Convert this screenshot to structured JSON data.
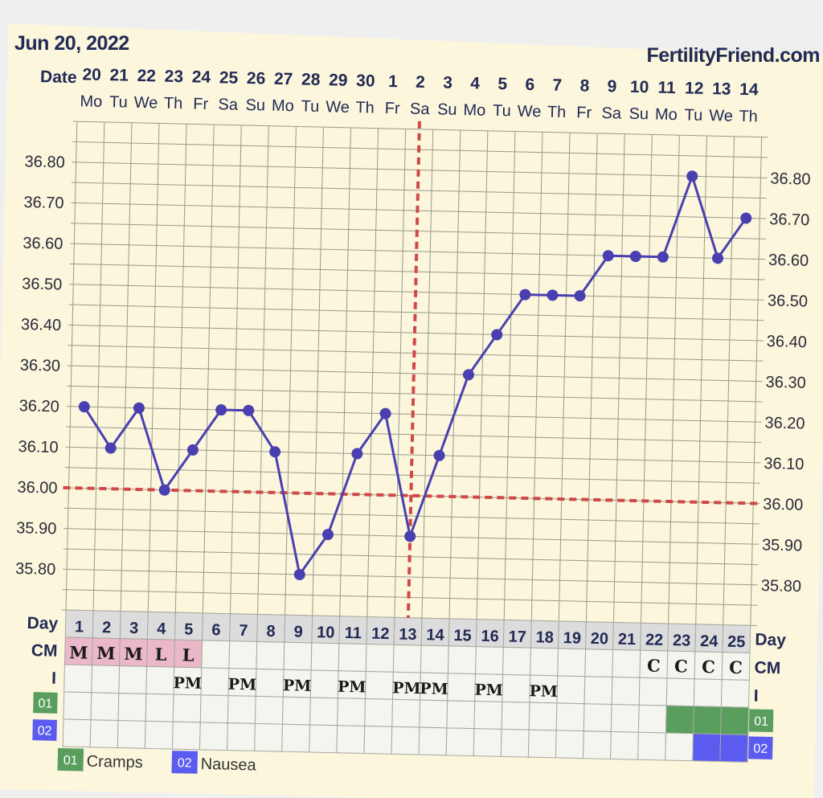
{
  "header": {
    "date_title": "Jun 20, 2022",
    "brand": "FertilityFriend.com"
  },
  "labels": {
    "date_row": "Date",
    "day_row": "Day",
    "cm_row": "CM",
    "i_row": "I",
    "code_01": "01",
    "code_02": "02"
  },
  "legend": [
    {
      "code": "01",
      "label": "Cramps",
      "color": "#5a9e5e"
    },
    {
      "code": "02",
      "label": "Nausea",
      "color": "#5b5bf0"
    }
  ],
  "colors": {
    "paper": "#fbf6dc",
    "grid": "#9a9a8a",
    "series": "#4a3fb0",
    "coverline": "#d04848",
    "menses_cell": "#eab8c8",
    "day_cell": "#dcdcdc",
    "data_cell": "#f5f5f0"
  },
  "chart_data": {
    "type": "line",
    "title": "",
    "xlabel": "Date",
    "ylabel": "",
    "x": [
      "20",
      "21",
      "22",
      "23",
      "24",
      "25",
      "26",
      "27",
      "28",
      "29",
      "30",
      "1",
      "2",
      "3",
      "4",
      "5",
      "6",
      "7",
      "8",
      "9",
      "10",
      "11",
      "12",
      "13",
      "14"
    ],
    "weekdays": [
      "Mo",
      "Tu",
      "We",
      "Th",
      "Fr",
      "Sa",
      "Su",
      "Mo",
      "Tu",
      "We",
      "Th",
      "Fr",
      "Sa",
      "Su",
      "Mo",
      "Tu",
      "We",
      "Th",
      "Fr",
      "Sa",
      "Su",
      "Mo",
      "Tu",
      "We",
      "Th"
    ],
    "cycle_days": [
      "1",
      "2",
      "3",
      "4",
      "5",
      "6",
      "7",
      "8",
      "9",
      "10",
      "11",
      "12",
      "13",
      "14",
      "15",
      "16",
      "17",
      "18",
      "19",
      "20",
      "21",
      "22",
      "23",
      "24",
      "25"
    ],
    "series": [
      {
        "values": [
          36.2,
          36.1,
          36.2,
          36.0,
          36.1,
          36.2,
          36.2,
          36.1,
          35.8,
          35.9,
          36.1,
          36.2,
          35.9,
          36.1,
          36.3,
          36.4,
          36.5,
          36.5,
          36.5,
          36.6,
          36.6,
          36.6,
          36.8,
          36.6,
          36.7
        ]
      }
    ],
    "y_ticks": [
      "36.80",
      "36.70",
      "36.60",
      "36.50",
      "36.40",
      "36.30",
      "36.20",
      "36.10",
      "36.00",
      "35.90",
      "35.80"
    ],
    "ylim": [
      35.7,
      36.9
    ],
    "coverline": 36.0,
    "ovulation_day": 13,
    "grid": true,
    "cm_row": [
      "M",
      "M",
      "M",
      "L",
      "L",
      "",
      "",
      "",
      "",
      "",
      "",
      "",
      "",
      "",
      "",
      "",
      "",
      "",
      "",
      "",
      "",
      "C",
      "C",
      "C",
      "C"
    ],
    "i_row": [
      "",
      "",
      "",
      "",
      "PM",
      "",
      "PM",
      "",
      "PM",
      "",
      "PM",
      "",
      "PM",
      "PM",
      "",
      "PM",
      "",
      "PM",
      "",
      "",
      "",
      "",
      "",
      "",
      ""
    ],
    "symptom_01": [
      false,
      false,
      false,
      false,
      false,
      false,
      false,
      false,
      false,
      false,
      false,
      false,
      false,
      false,
      false,
      false,
      false,
      false,
      false,
      false,
      false,
      false,
      true,
      true,
      true
    ],
    "symptom_02": [
      false,
      false,
      false,
      false,
      false,
      false,
      false,
      false,
      false,
      false,
      false,
      false,
      false,
      false,
      false,
      false,
      false,
      false,
      false,
      false,
      false,
      false,
      false,
      true,
      true
    ]
  }
}
